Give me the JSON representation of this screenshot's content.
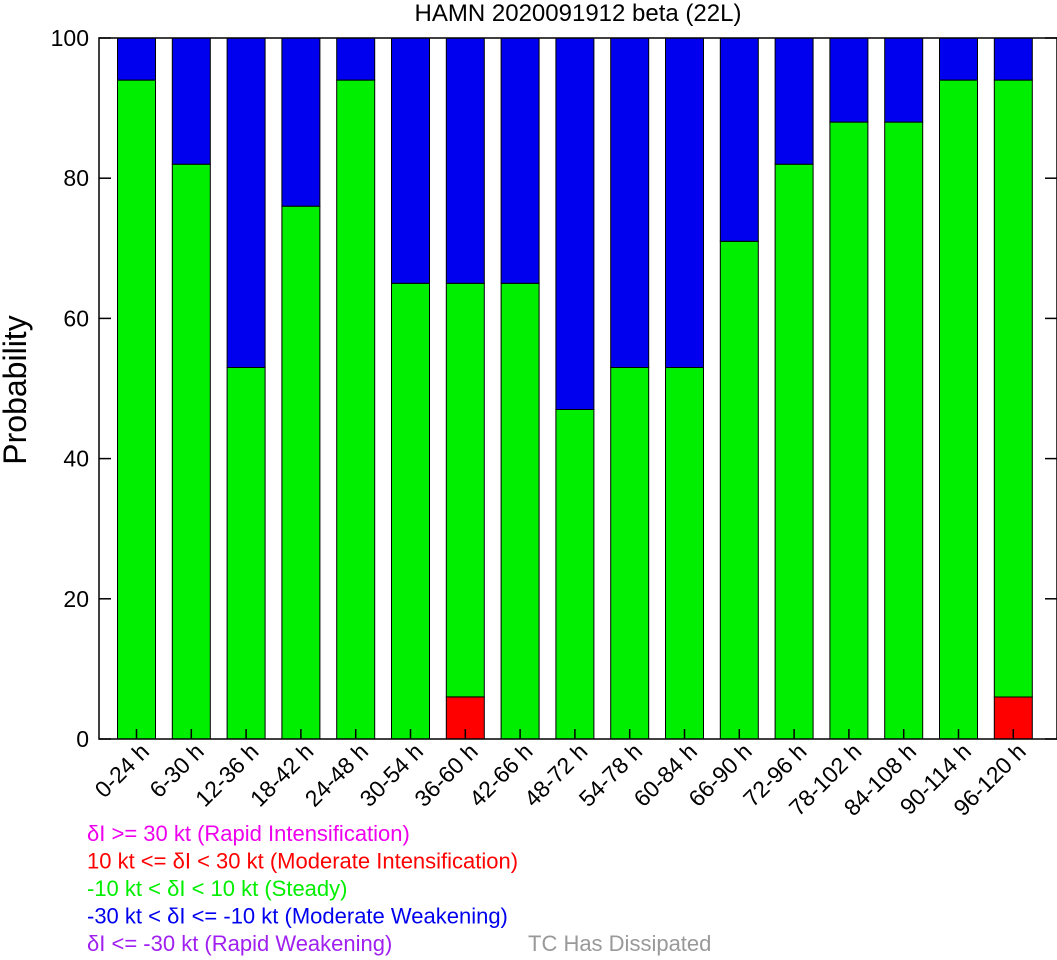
{
  "chart_data": {
    "type": "bar",
    "stacked": true,
    "title": "HAMN 2020091912 beta (22L)",
    "xlabel": "",
    "ylabel": "Probability",
    "ylim": [
      0,
      100
    ],
    "yticks": [
      0,
      20,
      40,
      60,
      80,
      100
    ],
    "categories": [
      "0-24 h",
      "6-30 h",
      "12-36 h",
      "18-42 h",
      "24-48 h",
      "30-54 h",
      "36-60 h",
      "42-66 h",
      "48-72 h",
      "54-78 h",
      "60-84 h",
      "66-90 h",
      "72-96 h",
      "78-102 h",
      "84-108 h",
      "90-114 h",
      "96-120 h"
    ],
    "series": [
      {
        "name": "Moderate Intensification",
        "color": "#ff0000",
        "values": [
          0,
          0,
          0,
          0,
          0,
          0,
          6,
          0,
          0,
          0,
          0,
          0,
          0,
          0,
          0,
          0,
          6
        ]
      },
      {
        "name": "Steady",
        "color": "#00ee00",
        "values": [
          94,
          82,
          53,
          76,
          94,
          65,
          59,
          65,
          47,
          53,
          53,
          71,
          82,
          88,
          88,
          94,
          88
        ]
      },
      {
        "name": "Moderate Weakening",
        "color": "#0000ee",
        "values": [
          6,
          18,
          47,
          24,
          6,
          35,
          35,
          35,
          53,
          47,
          47,
          29,
          18,
          12,
          12,
          6,
          6
        ]
      }
    ],
    "grid": false,
    "legend_position": "bottom-left",
    "legend": [
      {
        "text": "δI >= 30 kt (Rapid Intensification)",
        "color": "#ee00ee"
      },
      {
        "text": "10 kt <= δI < 30 kt (Moderate Intensification)",
        "color": "#ff0000"
      },
      {
        "text": "-10 kt < δI < 10 kt (Steady)",
        "color": "#00ee00"
      },
      {
        "text": "-30 kt < δI <= -10 kt (Moderate Weakening)",
        "color": "#0000ee"
      },
      {
        "text": "δI <= -30 kt (Rapid Weakening)",
        "color": "#a020f0"
      }
    ],
    "note": {
      "text": "TC Has Dissipated",
      "color": "#999999"
    }
  }
}
